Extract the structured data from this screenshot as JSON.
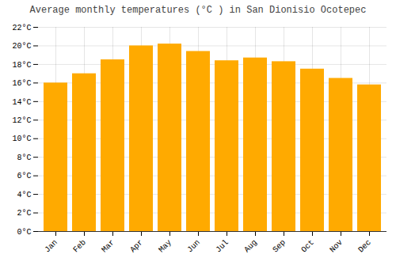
{
  "chart_data": {
    "type": "bar",
    "title": "Average monthly temperatures (°C ) in San Dionisio Ocotepec",
    "categories": [
      "Jan",
      "Feb",
      "Mar",
      "Apr",
      "May",
      "Jun",
      "Jul",
      "Aug",
      "Sep",
      "Oct",
      "Nov",
      "Dec"
    ],
    "values": [
      16.0,
      17.0,
      18.5,
      20.0,
      20.2,
      19.4,
      18.4,
      18.7,
      18.3,
      17.5,
      16.5,
      15.8
    ],
    "color": "#FFAA00",
    "ylim": [
      0,
      22
    ],
    "yticks": [
      {
        "value": 0,
        "label": "0°C"
      },
      {
        "value": 2,
        "label": "2°C"
      },
      {
        "value": 4,
        "label": "4°C"
      },
      {
        "value": 6,
        "label": "6°C"
      },
      {
        "value": 8,
        "label": "8°C"
      },
      {
        "value": 10,
        "label": "10°C"
      },
      {
        "value": 12,
        "label": "12°C"
      },
      {
        "value": 14,
        "label": "14°C"
      },
      {
        "value": 16,
        "label": "16°C"
      },
      {
        "value": 18,
        "label": "18°C"
      },
      {
        "value": 20,
        "label": "20°C"
      },
      {
        "value": 22,
        "label": "22°C"
      }
    ],
    "grid": true
  }
}
